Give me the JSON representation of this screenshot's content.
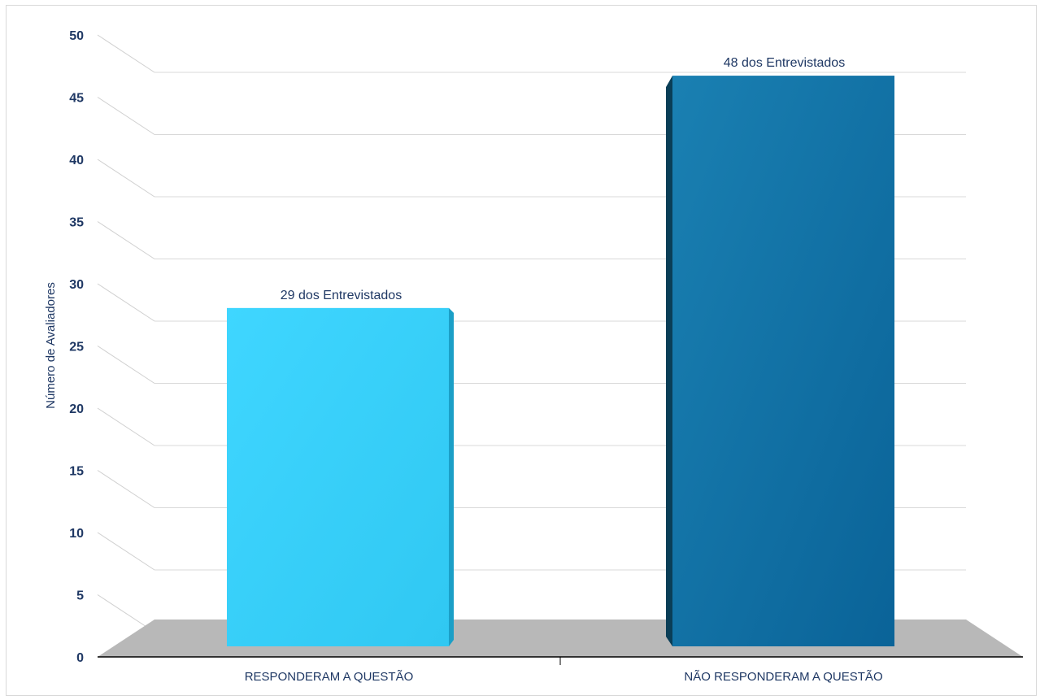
{
  "chart_data": {
    "type": "bar",
    "categories": [
      "RESPONDERAM A QUESTÃO",
      "NÃO RESPONDERAM A QUESTÃO"
    ],
    "values": [
      29,
      48
    ],
    "data_labels": [
      "29 dos Entrevistados",
      "48 dos Entrevistados"
    ],
    "bar_colors": [
      "#38d0fa",
      "#0e6fa5"
    ],
    "title": "",
    "xlabel": "",
    "ylabel": "Número de Avaliadores",
    "ylim": [
      0,
      50
    ],
    "yticks": [
      0,
      5,
      10,
      15,
      20,
      25,
      30,
      35,
      40,
      45,
      50
    ],
    "grid": true,
    "legend": "none",
    "style": "3d"
  }
}
